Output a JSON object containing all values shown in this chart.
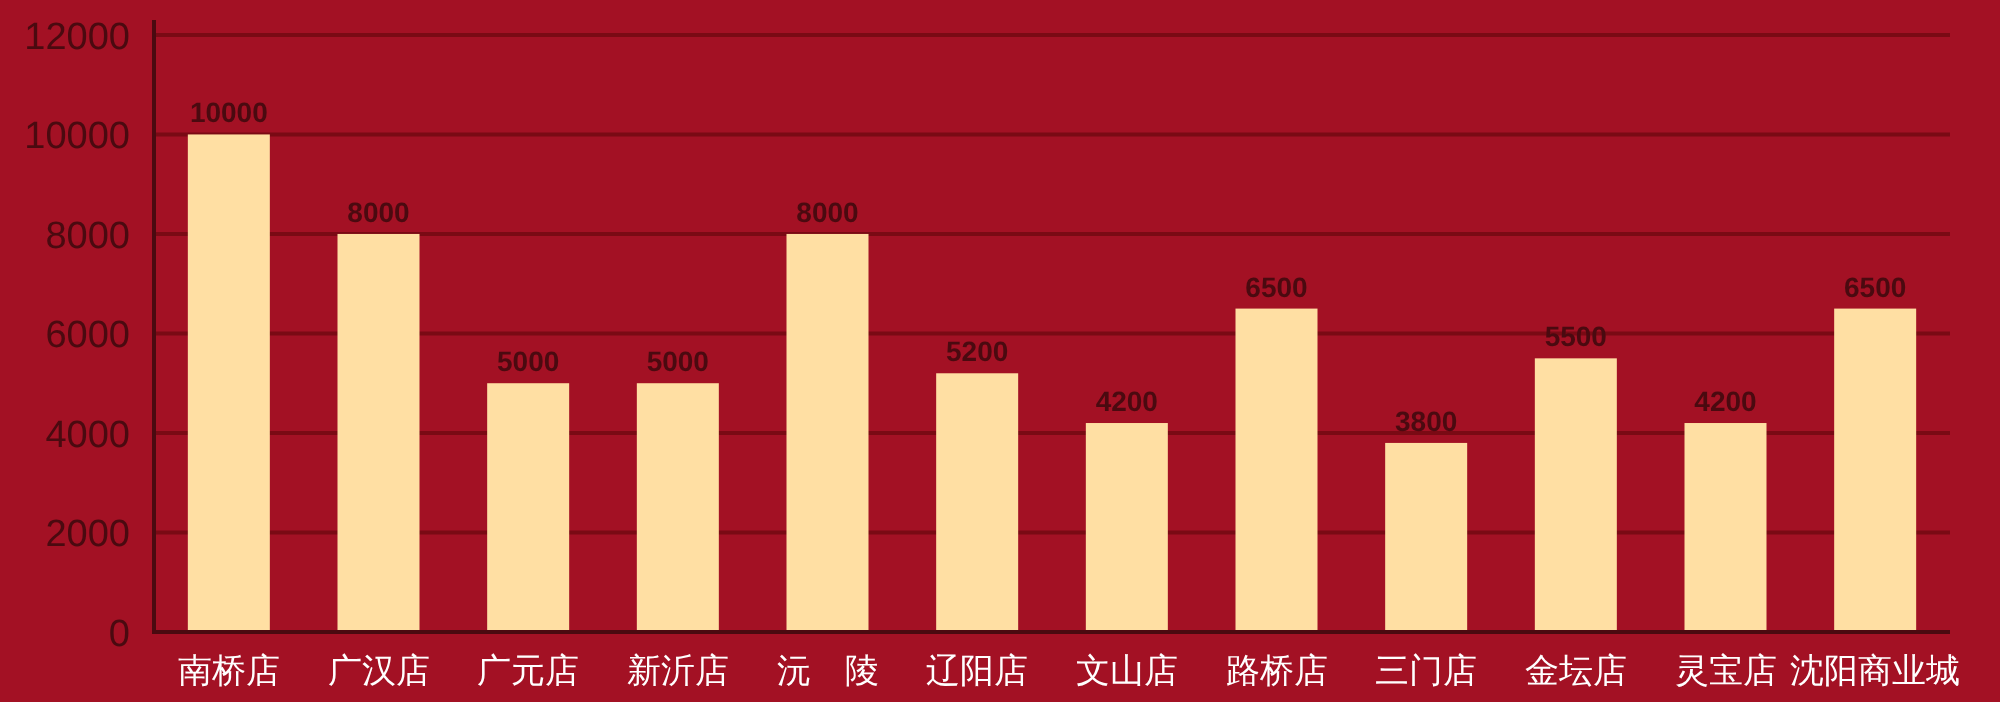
{
  "chart_data": {
    "type": "bar",
    "categories": [
      "南桥店",
      "广汉店",
      "广元店",
      "新沂店",
      "沅　陵",
      "辽阳店",
      "文山店",
      "路桥店",
      "三门店",
      "金坛店",
      "灵宝店",
      "沈阳商业城"
    ],
    "values": [
      10000,
      8000,
      5000,
      5000,
      8000,
      5200,
      4200,
      6500,
      3800,
      5500,
      4200,
      6500
    ],
    "color": "#ffdfa3",
    "ylim": [
      0,
      12300
    ],
    "yticks": [
      0,
      2000,
      4000,
      6000,
      8000,
      10000,
      12000
    ],
    "grid": "y",
    "data_labels": true
  }
}
